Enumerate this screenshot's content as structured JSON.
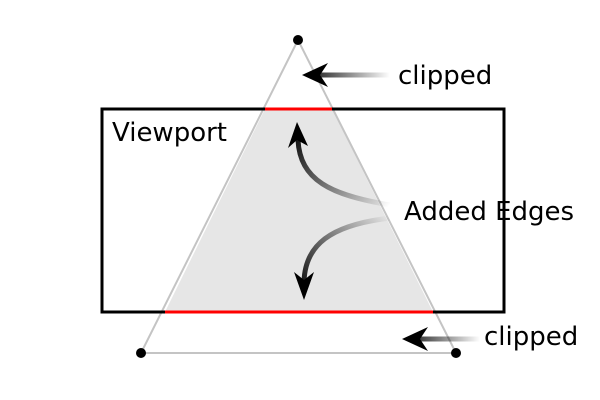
{
  "labels": {
    "viewport": "Viewport",
    "clipped_top": "clipped",
    "added_edges": "Added Edges",
    "clipped_bottom": "clipped"
  },
  "colors": {
    "triangle_outline": "#c4c4c4",
    "clipped_fill": "#e6e6e6",
    "added_edge": "#ff0000",
    "viewport_border": "#000000",
    "text": "#000000"
  }
}
